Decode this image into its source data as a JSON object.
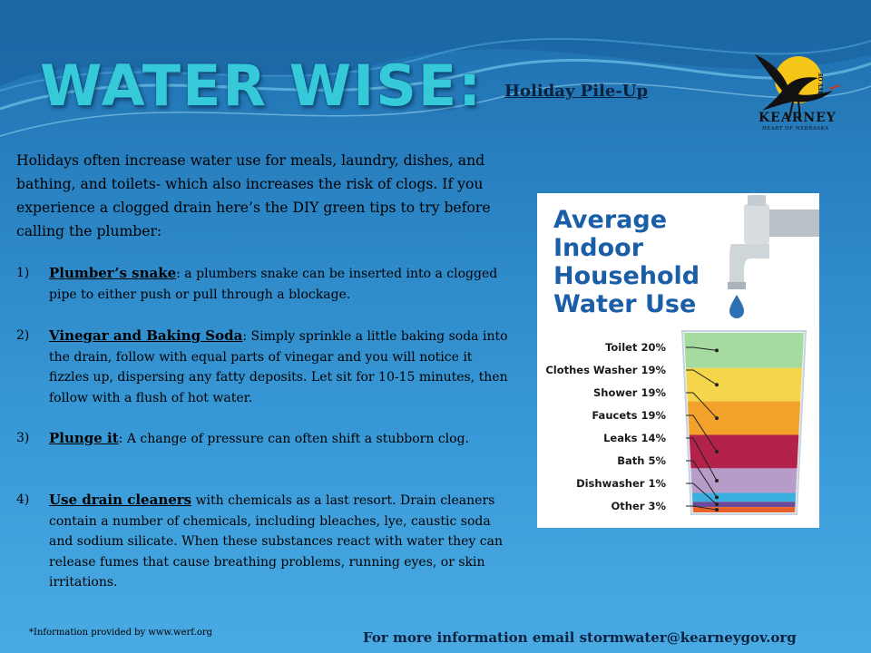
{
  "title": "WATER WISE:",
  "subtitle": "Holiday Pile-Up",
  "logo": {
    "icon": "crane-bird-sun-icon",
    "city_of": "CITY OF",
    "city": "KEARNEY",
    "tagline": "HEART OF NEBRASKA",
    "colors": {
      "sun": "#f5c518",
      "bird": "#111111"
    }
  },
  "intro": "Holidays often increase water use for meals, laundry, dishes, and bathing, and toilets- which also increases the risk of clogs. If you experience a clogged drain here’s the DIY green tips to try before calling the plumber:",
  "tips": [
    {
      "number": "1)",
      "title": "Plumber’s snake",
      "text": ": a plumbers snake can be inserted into a clogged pipe to either push or pull through a blockage."
    },
    {
      "number": "2)",
      "title": "Vinegar and Baking Soda",
      "text": ": Simply sprinkle a little baking soda into the drain, follow with equal parts of vinegar and you will notice it fizzles up, dispersing any fatty deposits. Let sit for 10-15 minutes, then follow with a flush of hot water."
    },
    {
      "number": "3)",
      "title": "Plunge it",
      "text": ": A change of pressure can often shift a stubborn clog."
    },
    {
      "number": "4)",
      "title": "Use drain cleaners",
      "text": " with chemicals as a last resort. Drain cleaners contain a number of chemicals, including bleaches, lye, caustic soda and sodium silicate. When these substances react with water they can release fumes that cause breathing problems, running eyes, or skin irritations."
    }
  ],
  "infographic": {
    "title_lines": [
      "Average",
      "Indoor",
      "Household",
      "Water Use"
    ],
    "title_color": "#1b5ea8",
    "items": [
      {
        "label": "Toilet 20%",
        "value": 20,
        "color": "#a6dba0"
      },
      {
        "label": "Clothes Washer 19%",
        "value": 19,
        "color": "#f5d64b"
      },
      {
        "label": "Shower 19%",
        "value": 19,
        "color": "#f2a22b"
      },
      {
        "label": "Faucets 19%",
        "value": 19,
        "color": "#b3224b"
      },
      {
        "label": "Leaks 14%",
        "value": 14,
        "color": "#b79bc9"
      },
      {
        "label": "Bath 5%",
        "value": 5,
        "color": "#3bb0e0"
      },
      {
        "label": "Dishwasher 1%",
        "value": 1,
        "color": "#6b4a9a"
      },
      {
        "label": "Other 3%",
        "value": 3,
        "color": "#e8602a"
      }
    ]
  },
  "footnote": "*Information provided by www.werf.org",
  "contact": "For more information email stormwater@kearneygov.org"
}
